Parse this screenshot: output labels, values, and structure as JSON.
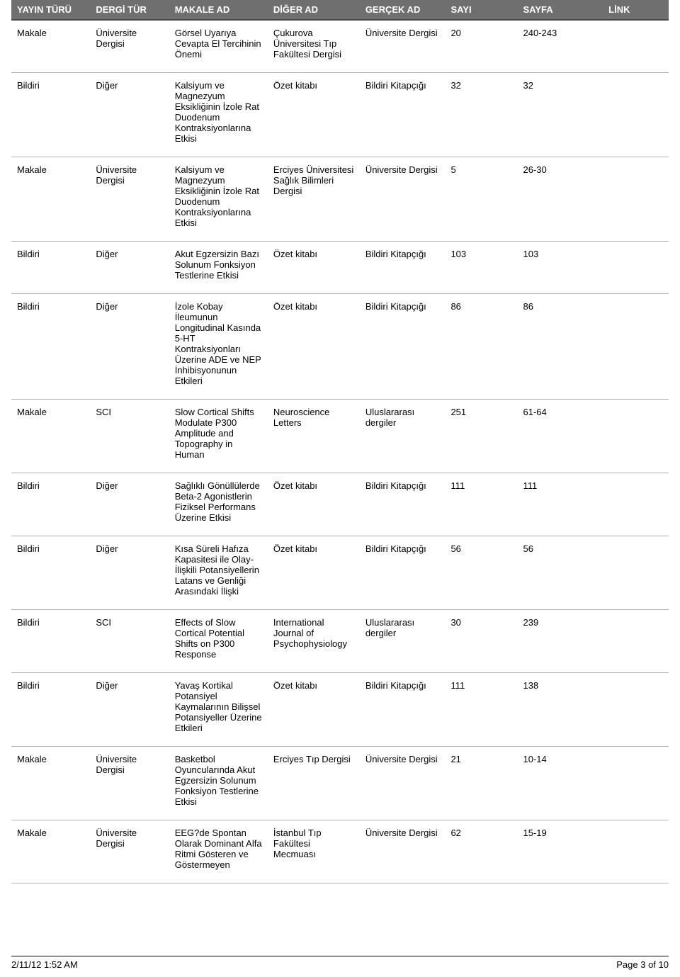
{
  "table": {
    "columns": [
      {
        "label": "YAYIN TÜRÜ",
        "width": "12%"
      },
      {
        "label": "DERGİ TÜR",
        "width": "12%"
      },
      {
        "label": "MAKALE  AD",
        "width": "15%"
      },
      {
        "label": "DİĞER AD",
        "width": "14%"
      },
      {
        "label": "GERÇEK AD",
        "width": "13%"
      },
      {
        "label": "SAYI",
        "width": "11%"
      },
      {
        "label": "SAYFA",
        "width": "13%"
      },
      {
        "label": "LİNK",
        "width": "10%"
      }
    ],
    "rows": [
      [
        "Makale",
        "Üniversite Dergisi",
        "Görsel Uyarıya Cevapta El Tercihinin Önemi",
        "Çukurova Üniversitesi Tıp Fakültesi Dergisi",
        "Üniversite Dergisi",
        "20",
        "240-243",
        ""
      ],
      [
        "Bildiri",
        "Diğer",
        "Kalsiyum ve Magnezyum Eksikliğinin İzole Rat Duodenum Kontraksiyonlarına Etkisi",
        "Özet kitabı",
        "Bildiri Kitapçığı",
        "32",
        "32",
        ""
      ],
      [
        "Makale",
        "Üniversite Dergisi",
        "Kalsiyum ve Magnezyum Eksikliğinin İzole Rat Duodenum Kontraksiyonlarına Etkisi",
        "Erciyes Üniversitesi Sağlık Bilimleri Dergisi",
        "Üniversite Dergisi",
        "5",
        "26-30",
        ""
      ],
      [
        "Bildiri",
        "Diğer",
        "Akut Egzersizin Bazı Solunum Fonksiyon Testlerine Etkisi",
        "Özet kitabı",
        "Bildiri Kitapçığı",
        "103",
        "103",
        ""
      ],
      [
        "Bildiri",
        "Diğer",
        "İzole Kobay İleumunun Longitudinal Kasında 5-HT Kontraksiyonları Üzerine ADE ve NEP İnhibisyonunun Etkileri",
        "Özet kitabı",
        "Bildiri Kitapçığı",
        "86",
        "86",
        ""
      ],
      [
        "Makale",
        "SCI",
        "Slow Cortical Shifts Modulate P300 Amplitude and Topography in Human",
        "Neuroscience Letters",
        "Uluslararası dergiler",
        "251",
        "61-64",
        ""
      ],
      [
        "Bildiri",
        "Diğer",
        "Sağlıklı Gönüllülerde Beta-2 Agonistlerin Fiziksel Performans Üzerine Etkisi",
        "Özet kitabı",
        "Bildiri Kitapçığı",
        "111",
        "111",
        ""
      ],
      [
        "Bildiri",
        "Diğer",
        "Kısa Süreli Hafıza Kapasitesi ile Olay-İlişkili Potansiyellerin Latans ve Genliği Arasındaki İlişki",
        "Özet kitabı",
        "Bildiri Kitapçığı",
        "56",
        "56",
        ""
      ],
      [
        "Bildiri",
        "SCI",
        "Effects of Slow Cortical Potential Shifts on P300 Response",
        "International Journal of Psychophysiology",
        "Uluslararası dergiler",
        "30",
        "239",
        ""
      ],
      [
        "Bildiri",
        "Diğer",
        "Yavaş Kortikal Potansiyel Kaymalarının Bilişsel Potansiyeller Üzerine Etkileri",
        "Özet kitabı",
        "Bildiri Kitapçığı",
        "111",
        "138",
        ""
      ],
      [
        "Makale",
        "Üniversite Dergisi",
        "Basketbol Oyuncularında Akut Egzersizin Solunum Fonksiyon Testlerine Etkisi",
        "Erciyes Tıp Dergisi",
        "Üniversite Dergisi",
        "21",
        "10-14",
        ""
      ],
      [
        "Makale",
        "Üniversite Dergisi",
        "EEG?de Spontan Olarak Dominant Alfa Ritmi Gösteren ve Göstermeyen",
        "İstanbul Tıp Fakültesi Mecmuası",
        "Üniversite Dergisi",
        "62",
        "15-19",
        ""
      ]
    ]
  },
  "footer": {
    "timestamp": "2/11/12 1:52 AM",
    "pageinfo": "Page 3 of 10"
  },
  "style": {
    "header_bg": "#6f6f6f",
    "header_text": "#ffffff",
    "row_border": "#b0b0b0",
    "body_text": "#000000",
    "font_size_header": 13,
    "font_size_body": 13
  }
}
